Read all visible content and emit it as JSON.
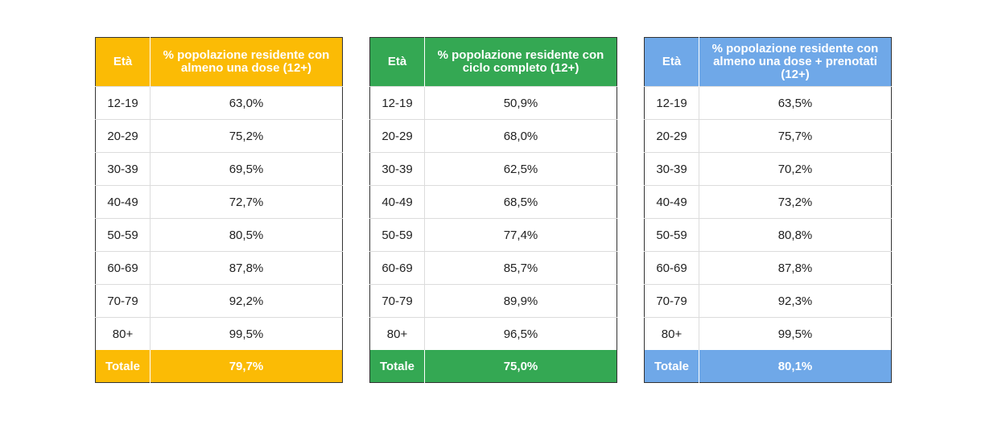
{
  "tables": [
    {
      "color": "#FBBB05",
      "headers": [
        "Età",
        "% popolazione residente con almeno una dose (12+)"
      ],
      "rows": [
        {
          "age": "12-19",
          "value": "63,0%"
        },
        {
          "age": "20-29",
          "value": "75,2%"
        },
        {
          "age": "30-39",
          "value": "69,5%"
        },
        {
          "age": "40-49",
          "value": "72,7%"
        },
        {
          "age": "50-59",
          "value": "80,5%"
        },
        {
          "age": "60-69",
          "value": "87,8%"
        },
        {
          "age": "70-79",
          "value": "92,2%"
        },
        {
          "age": "80+",
          "value": "99,5%"
        }
      ],
      "total": {
        "label": "Totale",
        "value": "79,7%"
      }
    },
    {
      "color": "#34A853",
      "headers": [
        "Età",
        "% popolazione residente con ciclo completo (12+)"
      ],
      "rows": [
        {
          "age": "12-19",
          "value": "50,9%"
        },
        {
          "age": "20-29",
          "value": "68,0%"
        },
        {
          "age": "30-39",
          "value": "62,5%"
        },
        {
          "age": "40-49",
          "value": "68,5%"
        },
        {
          "age": "50-59",
          "value": "77,4%"
        },
        {
          "age": "60-69",
          "value": "85,7%"
        },
        {
          "age": "70-79",
          "value": "89,9%"
        },
        {
          "age": "80+",
          "value": "96,5%"
        }
      ],
      "total": {
        "label": "Totale",
        "value": "75,0%"
      }
    },
    {
      "color": "#6FA8E8",
      "headers": [
        "Età",
        "% popolazione residente con almeno una dose + prenotati (12+)"
      ],
      "rows": [
        {
          "age": "12-19",
          "value": "63,5%"
        },
        {
          "age": "20-29",
          "value": "75,7%"
        },
        {
          "age": "30-39",
          "value": "70,2%"
        },
        {
          "age": "40-49",
          "value": "73,2%"
        },
        {
          "age": "50-59",
          "value": "80,8%"
        },
        {
          "age": "60-69",
          "value": "87,8%"
        },
        {
          "age": "70-79",
          "value": "92,3%"
        },
        {
          "age": "80+",
          "value": "99,5%"
        }
      ],
      "total": {
        "label": "Totale",
        "value": "80,1%"
      }
    }
  ],
  "chart_data": [
    {
      "type": "table",
      "columns": [
        "Età",
        "% popolazione residente con almeno una dose (12+)"
      ],
      "categories": [
        "12-19",
        "20-29",
        "30-39",
        "40-49",
        "50-59",
        "60-69",
        "70-79",
        "80+",
        "Totale"
      ],
      "values": [
        63.0,
        75.2,
        69.5,
        72.7,
        80.5,
        87.8,
        92.2,
        99.5,
        79.7
      ]
    },
    {
      "type": "table",
      "columns": [
        "Età",
        "% popolazione residente con ciclo completo (12+)"
      ],
      "categories": [
        "12-19",
        "20-29",
        "30-39",
        "40-49",
        "50-59",
        "60-69",
        "70-79",
        "80+",
        "Totale"
      ],
      "values": [
        50.9,
        68.0,
        62.5,
        68.5,
        77.4,
        85.7,
        89.9,
        96.5,
        75.0
      ]
    },
    {
      "type": "table",
      "columns": [
        "Età",
        "% popolazione residente con almeno una dose + prenotati (12+)"
      ],
      "categories": [
        "12-19",
        "20-29",
        "30-39",
        "40-49",
        "50-59",
        "60-69",
        "70-79",
        "80+",
        "Totale"
      ],
      "values": [
        63.5,
        75.7,
        70.2,
        73.2,
        80.8,
        87.8,
        92.3,
        99.5,
        80.1
      ]
    }
  ]
}
